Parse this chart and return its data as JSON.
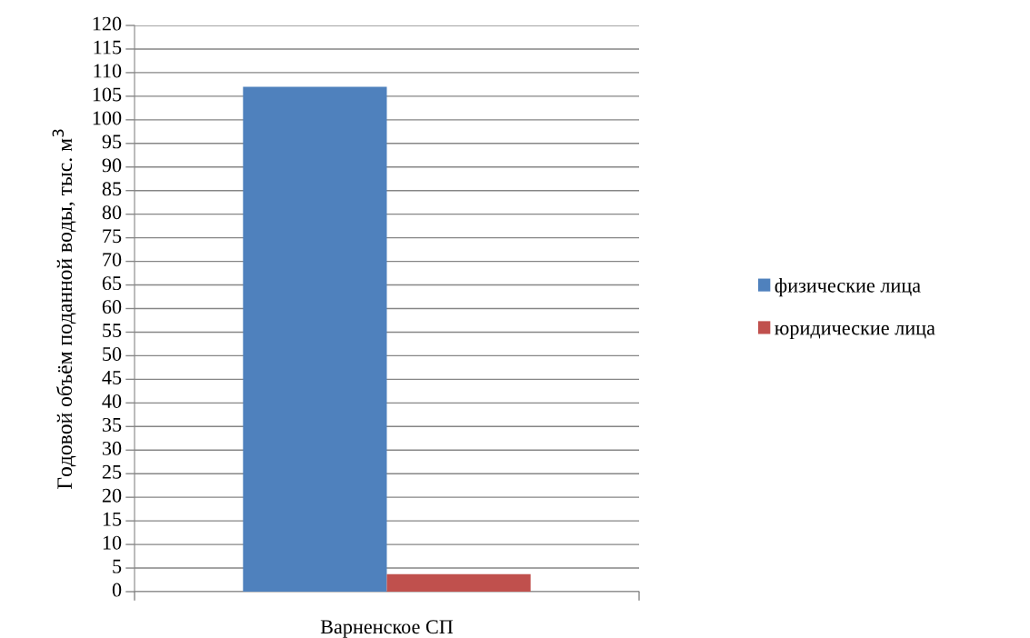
{
  "chart_data": {
    "type": "bar",
    "ylabel": "Годовой объём поданной воды, тыс. м$^{3}$",
    "categories": [
      "Варненское СП"
    ],
    "series": [
      {
        "name": "физические лица",
        "color": "#4f81bd",
        "values": [
          107
        ]
      },
      {
        "name": "юридические лица",
        "color": "#c0504d",
        "values": [
          3.7
        ]
      }
    ],
    "ylim": [
      0,
      120
    ],
    "yticks": [
      0,
      5,
      10,
      15,
      20,
      25,
      30,
      35,
      40,
      45,
      50,
      55,
      60,
      65,
      70,
      75,
      80,
      85,
      90,
      95,
      100,
      105,
      110,
      115,
      120
    ],
    "grid": "y",
    "legend": "right"
  }
}
